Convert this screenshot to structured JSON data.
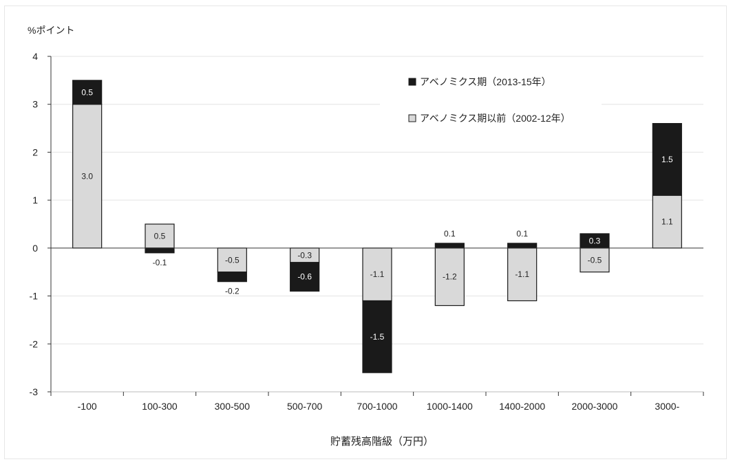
{
  "chart_data": {
    "type": "bar",
    "stacked": true,
    "ylabel": "%ポイント",
    "xlabel": "貯蓄残高階級（万円）",
    "ylim": [
      -3,
      4
    ],
    "yticks": [
      4,
      3,
      2,
      1,
      0,
      -1,
      -2,
      -3
    ],
    "grid": true,
    "legend_position": "top-right",
    "categories": [
      "-100",
      "100-300",
      "300-500",
      "500-700",
      "700-1000",
      "1000-1400",
      "1400-2000",
      "2000-3000",
      "3000-"
    ],
    "series": [
      {
        "name": "アベノミクス期以前（2002-12年）",
        "color": "#d9d9d9",
        "values": [
          3.0,
          0.5,
          -0.5,
          -0.3,
          -1.1,
          -1.2,
          -1.1,
          -0.5,
          1.1
        ],
        "labels": [
          "3.0",
          "0.5",
          "-0.5",
          "-0.3",
          "-1.1",
          "-1.2",
          "-1.1",
          "-0.5",
          "1.1"
        ]
      },
      {
        "name": "アベノミクス期（2013-15年）",
        "color": "#1a1a1a",
        "values": [
          0.5,
          -0.1,
          -0.2,
          -0.6,
          -1.5,
          0.1,
          0.1,
          0.3,
          1.5
        ],
        "labels": [
          "0.5",
          "-0.1",
          "-0.2",
          "-0.6",
          "-1.5",
          "0.1",
          "0.1",
          "0.3",
          "1.5"
        ]
      }
    ]
  }
}
